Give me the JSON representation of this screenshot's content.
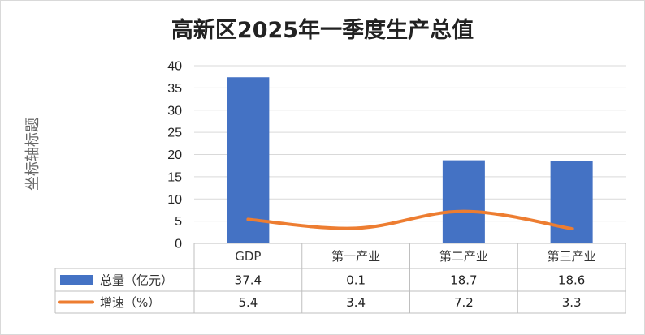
{
  "chart_data": {
    "type": "bar",
    "title": "高新区2025年一季度生产总值",
    "xlabel": "",
    "ylabel": "坐标轴标题",
    "ylim": [
      0,
      40
    ],
    "yticks": [
      0,
      5,
      10,
      15,
      20,
      25,
      30,
      35,
      40
    ],
    "categories": [
      "GDP",
      "第一产业",
      "第二产业",
      "第三产业"
    ],
    "grid": true,
    "legend": "table-left",
    "series": [
      {
        "name": "总量（亿元）",
        "type": "bar",
        "color": "#4472c4",
        "values": [
          37.4,
          0.1,
          18.7,
          18.6
        ]
      },
      {
        "name": "增速（%）",
        "type": "line",
        "color": "#ed7d31",
        "values": [
          5.4,
          3.4,
          7.2,
          3.3
        ]
      }
    ]
  }
}
